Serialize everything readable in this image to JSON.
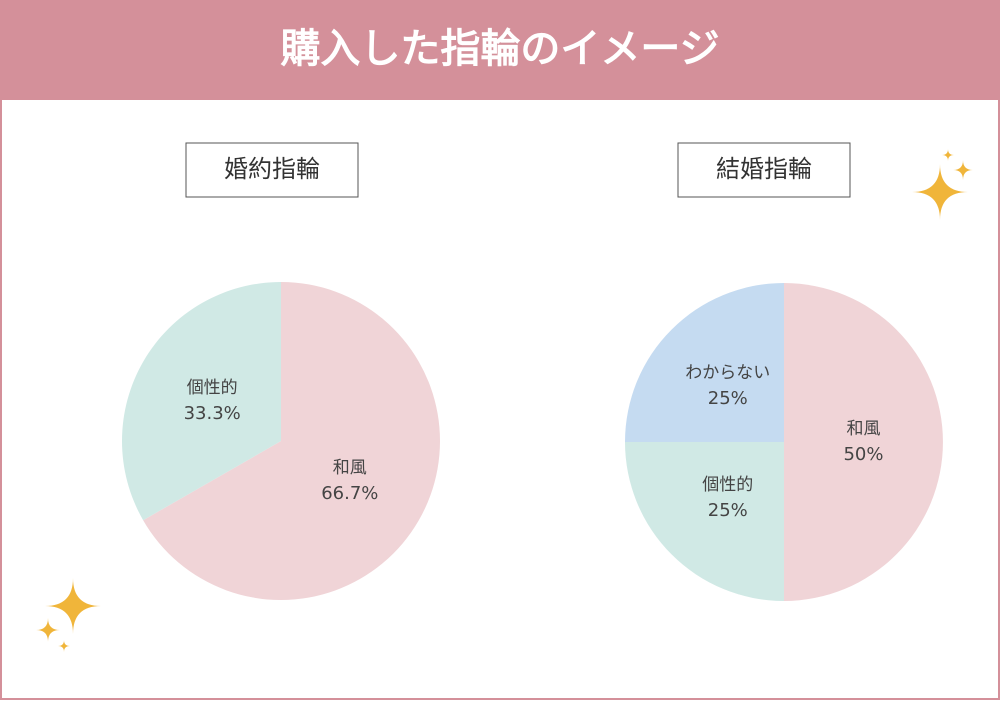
{
  "title": "購入した指輪のイメージ",
  "chart_data": [
    {
      "type": "pie",
      "title": "婚約指輪",
      "categories": [
        "和風",
        "個性的"
      ],
      "values": [
        66.7,
        33.3
      ],
      "value_labels": [
        "66.7%",
        "33.3%"
      ],
      "colors": [
        "#f0d4d7",
        "#d0e9e5"
      ]
    },
    {
      "type": "pie",
      "title": "結婚指輪",
      "categories": [
        "和風",
        "個性的",
        "わからない"
      ],
      "values": [
        50,
        25,
        25
      ],
      "value_labels": [
        "50%",
        "25%",
        "25%"
      ],
      "colors": [
        "#f0d4d7",
        "#d0e9e5",
        "#c5dbf1"
      ]
    }
  ]
}
